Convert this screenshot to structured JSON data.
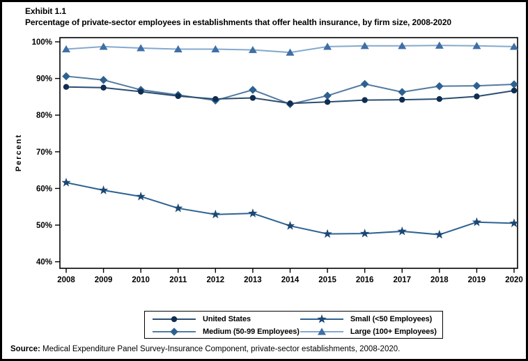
{
  "header": {
    "exhibit": "Exhibit 1.1",
    "title": "Percentage of private-sector employees in establishments that offer health insurance, by firm size, 2008-2020"
  },
  "chart_data": {
    "type": "line",
    "x": [
      2008,
      2009,
      2010,
      2011,
      2012,
      2013,
      2014,
      2015,
      2016,
      2017,
      2018,
      2019,
      2020
    ],
    "xlabel": "",
    "ylabel": "Percent",
    "ylim": [
      40,
      100
    ],
    "grid": false,
    "legend_position": "bottom",
    "yticks": [
      {
        "value": 100,
        "label": "100%"
      },
      {
        "value": 90,
        "label": "90%"
      },
      {
        "value": 80,
        "label": "80%"
      },
      {
        "value": 70,
        "label": "70%"
      },
      {
        "value": 60,
        "label": "60%"
      },
      {
        "value": 50,
        "label": "50%"
      },
      {
        "value": 40,
        "label": "40%"
      }
    ],
    "series": [
      {
        "name": "United States",
        "marker": "circle",
        "marker_color": "#0f2d50",
        "line_color": "#2b4d6f",
        "values": [
          87.7,
          87.5,
          86.4,
          85.2,
          84.4,
          84.7,
          83.2,
          83.6,
          84.1,
          84.2,
          84.4,
          85.1,
          86.7
        ]
      },
      {
        "name": "Medium (50-99 Employees)",
        "marker": "diamond",
        "marker_color": "#2d6190",
        "line_color": "#52799f",
        "values": [
          90.6,
          89.6,
          86.9,
          85.5,
          84.0,
          86.9,
          83.0,
          85.3,
          88.5,
          86.3,
          87.9,
          88.0,
          88.4
        ]
      },
      {
        "name": "Small (<50 Employees)",
        "marker": "star",
        "marker_color": "#1b4773",
        "line_color": "#2d6291",
        "values": [
          61.6,
          59.5,
          57.8,
          54.6,
          52.9,
          53.2,
          49.8,
          47.6,
          47.7,
          48.3,
          47.4,
          50.8,
          50.5
        ]
      },
      {
        "name": "Large (100+ Employees)",
        "marker": "triangle",
        "marker_color": "#3f6fa5",
        "line_color": "#84a9cd",
        "values": [
          98.0,
          98.7,
          98.3,
          98.0,
          98.0,
          97.8,
          97.1,
          98.7,
          98.9,
          98.9,
          99.0,
          98.9,
          98.7
        ]
      }
    ]
  },
  "source": {
    "label": "Source:",
    "text": " Medical Expenditure Panel Survey-Insurance Component, private-sector establishments, 2008-2020."
  }
}
